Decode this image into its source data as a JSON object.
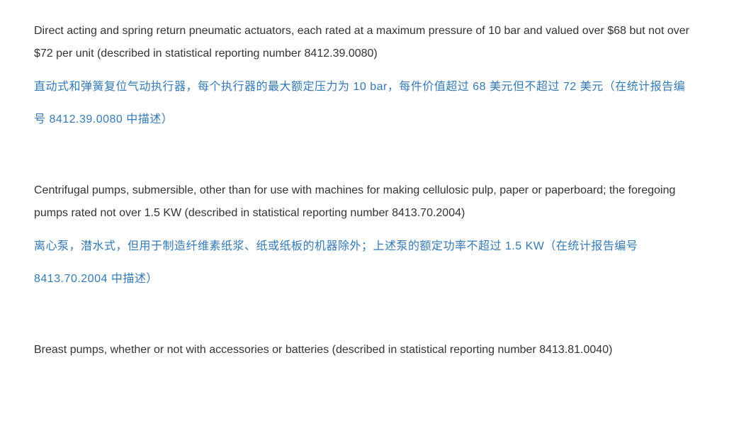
{
  "entries": [
    {
      "english": "Direct acting and spring return pneumatic actuators, each rated at a maximum pressure of 10 bar and valued over $68 but not over $72 per unit (described in statistical reporting number 8412.39.0080)",
      "chinese": "直动式和弹簧复位气动执行器，每个执行器的最大额定压力为 10 bar，每件价值超过 68 美元但不超过 72 美元（在统计报告编号 8412.39.0080 中描述）"
    },
    {
      "english": "Centrifugal pumps, submersible, other than for use with machines for making cellulosic pulp, paper or paperboard; the foregoing pumps rated not over 1.5 KW (described in statistical reporting number 8413.70.2004)",
      "chinese": "离心泵，潜水式，但用于制造纤维素纸浆、纸或纸板的机器除外；上述泵的额定功率不超过 1.5 KW（在统计报告编号 8413.70.2004 中描述）"
    },
    {
      "english": "Breast pumps, whether or not with accessories or batteries (described in statistical reporting number 8413.81.0040)",
      "chinese": ""
    }
  ],
  "colors": {
    "english_text": "#333333",
    "chinese_text": "#337ab7",
    "background": "#ffffff"
  },
  "typography": {
    "font_size_pt": 12,
    "font_family": "Arial / Microsoft YaHei",
    "line_height_en": 2.0,
    "line_height_zh": 2.9
  }
}
